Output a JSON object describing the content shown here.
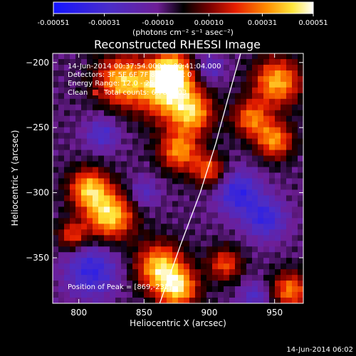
{
  "chart_data": {
    "type": "heatmap",
    "title": "Reconstructed RHESSI Image",
    "xlabel": "Heliocentric X (arcsec)",
    "ylabel": "Heliocentric Y (arcsec)",
    "xlim": [
      780,
      972
    ],
    "ylim": [
      -385,
      -193
    ],
    "x_ticks": [
      800,
      850,
      900,
      950
    ],
    "y_ticks": [
      -200,
      -250,
      -300,
      -350
    ],
    "colorbar": {
      "range": [
        -0.00051,
        0.00051
      ],
      "tick_values": [
        -0.00051,
        -0.00031,
        -0.0001,
        0.0001,
        0.00031,
        0.00051
      ],
      "tick_labels": [
        "-0.00051",
        "-0.00031",
        "-0.00010",
        "0.00010",
        "0.00031",
        "0.00051"
      ],
      "units_label": "(photons cm⁻² s⁻¹ asec⁻²)"
    },
    "annotations": {
      "time": "14-Jun-2014 00:37:54.000 to 00:41:04.000",
      "detectors": "Detectors: 3F 5F 6F 7F 8F 9F, Att 0",
      "energy": "Energy Range: 12.0 - 25.0 keV",
      "algorithm": "Clean",
      "total_counts": "Total counts: 6.78E+03",
      "peak": "Position of Peak = [869,-232]"
    },
    "peak_position": [
      869,
      -232
    ],
    "limb_arc": [
      [
        862,
        -385
      ],
      [
        878,
        -340
      ],
      [
        893,
        -300
      ],
      [
        905,
        -262
      ],
      [
        915,
        -225
      ],
      [
        924,
        -193
      ]
    ],
    "blobs": [
      {
        "x": 833,
        "y": -214,
        "r": 14,
        "amp": 0.00045
      },
      {
        "x": 869,
        "y": -222,
        "r": 16,
        "amp": 0.00051
      },
      {
        "x": 870,
        "y": -206,
        "r": 10,
        "amp": 0.0004
      },
      {
        "x": 888,
        "y": -240,
        "r": 11,
        "amp": 0.00036
      },
      {
        "x": 877,
        "y": -268,
        "r": 11,
        "amp": 0.0004
      },
      {
        "x": 900,
        "y": -283,
        "r": 9,
        "amp": 0.00033
      },
      {
        "x": 808,
        "y": -297,
        "r": 11,
        "amp": 0.00045
      },
      {
        "x": 824,
        "y": -318,
        "r": 13,
        "amp": 0.0005
      },
      {
        "x": 795,
        "y": -333,
        "r": 8,
        "amp": 0.0003
      },
      {
        "x": 862,
        "y": -357,
        "r": 13,
        "amp": 0.00047
      },
      {
        "x": 876,
        "y": -374,
        "r": 11,
        "amp": 0.00045
      },
      {
        "x": 912,
        "y": -355,
        "r": 9,
        "amp": 0.00032
      },
      {
        "x": 952,
        "y": -215,
        "r": 13,
        "amp": 0.00045
      },
      {
        "x": 932,
        "y": -243,
        "r": 10,
        "amp": 0.00036
      },
      {
        "x": 950,
        "y": -260,
        "r": 10,
        "amp": 0.0004
      },
      {
        "x": 962,
        "y": -375,
        "r": 10,
        "amp": 0.00038
      },
      {
        "x": 818,
        "y": -255,
        "r": 9,
        "amp": -0.00022
      },
      {
        "x": 810,
        "y": -360,
        "r": 14,
        "amp": -0.0003
      },
      {
        "x": 850,
        "y": -300,
        "r": 8,
        "amp": -0.00018
      },
      {
        "x": 922,
        "y": -300,
        "r": 12,
        "amp": -0.0003
      },
      {
        "x": 943,
        "y": -320,
        "r": 11,
        "amp": -0.00028
      },
      {
        "x": 900,
        "y": -205,
        "r": 8,
        "amp": -0.0002
      },
      {
        "x": 935,
        "y": -380,
        "r": 8,
        "amp": -0.0002
      }
    ]
  },
  "footer": {
    "timestamp": "14-Jun-2014 06:02"
  }
}
